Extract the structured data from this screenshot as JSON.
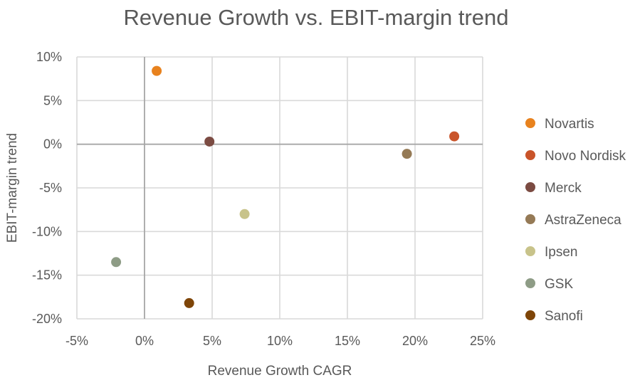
{
  "chart_data": {
    "type": "scatter",
    "title": "Revenue Growth vs. EBIT-margin trend",
    "xlabel": "Revenue Growth CAGR",
    "ylabel": "EBIT-margin trend",
    "xlim": [
      -5,
      25
    ],
    "ylim": [
      -20,
      10
    ],
    "x_ticks": [
      -5,
      0,
      5,
      10,
      15,
      20,
      25
    ],
    "y_ticks": [
      10,
      5,
      0,
      -5,
      -10,
      -15,
      -20
    ],
    "x_tick_labels": [
      "-5%",
      "0%",
      "5%",
      "10%",
      "15%",
      "20%",
      "25%"
    ],
    "y_tick_labels": [
      "10%",
      "5%",
      "0%",
      "-5%",
      "-10%",
      "-15%",
      "-20%"
    ],
    "grid": true,
    "legend_position": "right",
    "series": [
      {
        "name": "Novartis",
        "x": 0.9,
        "y": 8.4,
        "color": "#E8821E"
      },
      {
        "name": "Novo Nordisk",
        "x": 22.9,
        "y": 0.9,
        "color": "#C9542A"
      },
      {
        "name": "Merck",
        "x": 4.8,
        "y": 0.3,
        "color": "#7B4B42"
      },
      {
        "name": "AstraZeneca",
        "x": 19.4,
        "y": -1.1,
        "color": "#957A56"
      },
      {
        "name": "Ipsen",
        "x": 7.4,
        "y": -8.0,
        "color": "#C8C38A"
      },
      {
        "name": "GSK",
        "x": -2.1,
        "y": -13.5,
        "color": "#8E9C86"
      },
      {
        "name": "Sanofi",
        "x": 3.3,
        "y": -18.2,
        "color": "#7E4508"
      }
    ]
  }
}
